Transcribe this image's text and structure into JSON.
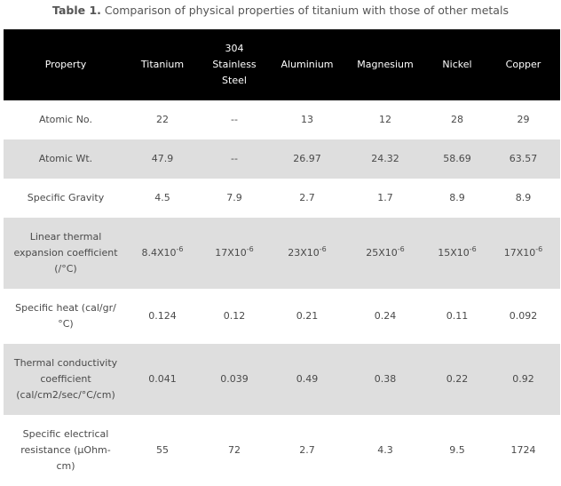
{
  "caption": {
    "label": "Table 1.",
    "text": " Comparison of physical properties of titanium with those of other metals"
  },
  "table": {
    "headers": [
      "Property",
      "Titanium",
      "304 Stainless Steel",
      "Aluminium",
      "Magnesium",
      "Nickel",
      "Copper"
    ],
    "rows": [
      {
        "property": "Atomic No.",
        "values": [
          "22",
          "--",
          "13",
          "12",
          "28",
          "29"
        ]
      },
      {
        "property": "Atomic Wt.",
        "values": [
          "47.9",
          "--",
          "26.97",
          "24.32",
          "58.69",
          "63.57"
        ]
      },
      {
        "property": "Specific Gravity",
        "values": [
          "4.5",
          "7.9",
          "2.7",
          "1.7",
          "8.9",
          "8.9"
        ]
      },
      {
        "property": "Linear thermal expansion coefficient (/°C)",
        "values": [
          {
            "base": "8.4X10",
            "exp": "-6"
          },
          {
            "base": "17X10",
            "exp": "-6"
          },
          {
            "base": "23X10",
            "exp": "-6"
          },
          {
            "base": "25X10",
            "exp": "-6"
          },
          {
            "base": "15X10",
            "exp": "-6"
          },
          {
            "base": "17X10",
            "exp": "-6"
          }
        ]
      },
      {
        "property": "Specific heat (cal/gr/°C)",
        "values": [
          "0.124",
          "0.12",
          "0.21",
          "0.24",
          "0.11",
          "0.092"
        ]
      },
      {
        "property": "Thermal conductivity coefficient (cal/cm2/sec/°C/cm)",
        "values": [
          "0.041",
          "0.039",
          "0.49",
          "0.38",
          "0.22",
          "0.92"
        ]
      },
      {
        "property": "Specific electrical resistance (μOhm-cm)",
        "values": [
          "55",
          "72",
          "2.7",
          "4.3",
          "9.5",
          "1724"
        ]
      }
    ]
  },
  "colors": {
    "header_bg": "#000000",
    "header_text": "#ffffff",
    "row_alt_bg": "#dedede",
    "text": "#4a4a4a"
  }
}
